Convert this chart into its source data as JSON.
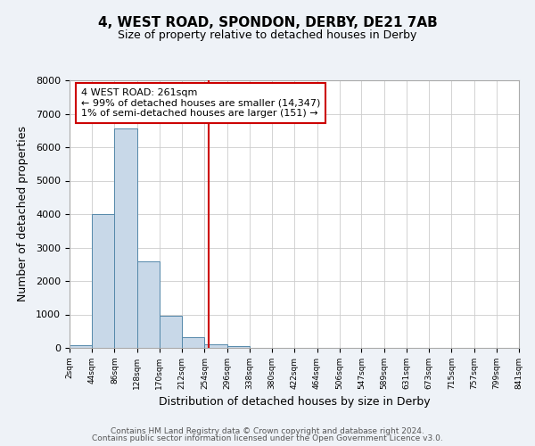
{
  "title": "4, WEST ROAD, SPONDON, DERBY, DE21 7AB",
  "subtitle": "Size of property relative to detached houses in Derby",
  "xlabel": "Distribution of detached houses by size in Derby",
  "ylabel": "Number of detached properties",
  "bar_edges": [
    2,
    44,
    86,
    128,
    170,
    212,
    254,
    296,
    338,
    380,
    422,
    464,
    506,
    547,
    589,
    631,
    673,
    715,
    757,
    799,
    841
  ],
  "bar_heights": [
    70,
    4000,
    6550,
    2600,
    960,
    310,
    110,
    50,
    0,
    0,
    0,
    0,
    0,
    0,
    0,
    0,
    0,
    0,
    0,
    0
  ],
  "bar_color": "#c8d8e8",
  "bar_edge_color": "#5588aa",
  "vline_x": 261,
  "vline_color": "#cc0000",
  "annotation_title": "4 WEST ROAD: 261sqm",
  "annotation_line1": "← 99% of detached houses are smaller (14,347)",
  "annotation_line2": "1% of semi-detached houses are larger (151) →",
  "annotation_box_color": "#cc0000",
  "ylim": [
    0,
    8000
  ],
  "yticks": [
    0,
    1000,
    2000,
    3000,
    4000,
    5000,
    6000,
    7000,
    8000
  ],
  "tick_labels": [
    "2sqm",
    "44sqm",
    "86sqm",
    "128sqm",
    "170sqm",
    "212sqm",
    "254sqm",
    "296sqm",
    "338sqm",
    "380sqm",
    "422sqm",
    "464sqm",
    "506sqm",
    "547sqm",
    "589sqm",
    "631sqm",
    "673sqm",
    "715sqm",
    "757sqm",
    "799sqm",
    "841sqm"
  ],
  "footer1": "Contains HM Land Registry data © Crown copyright and database right 2024.",
  "footer2": "Contains public sector information licensed under the Open Government Licence v3.0.",
  "bg_color": "#eef2f7",
  "plot_bg_color": "#ffffff",
  "title_fontsize": 11,
  "subtitle_fontsize": 9
}
